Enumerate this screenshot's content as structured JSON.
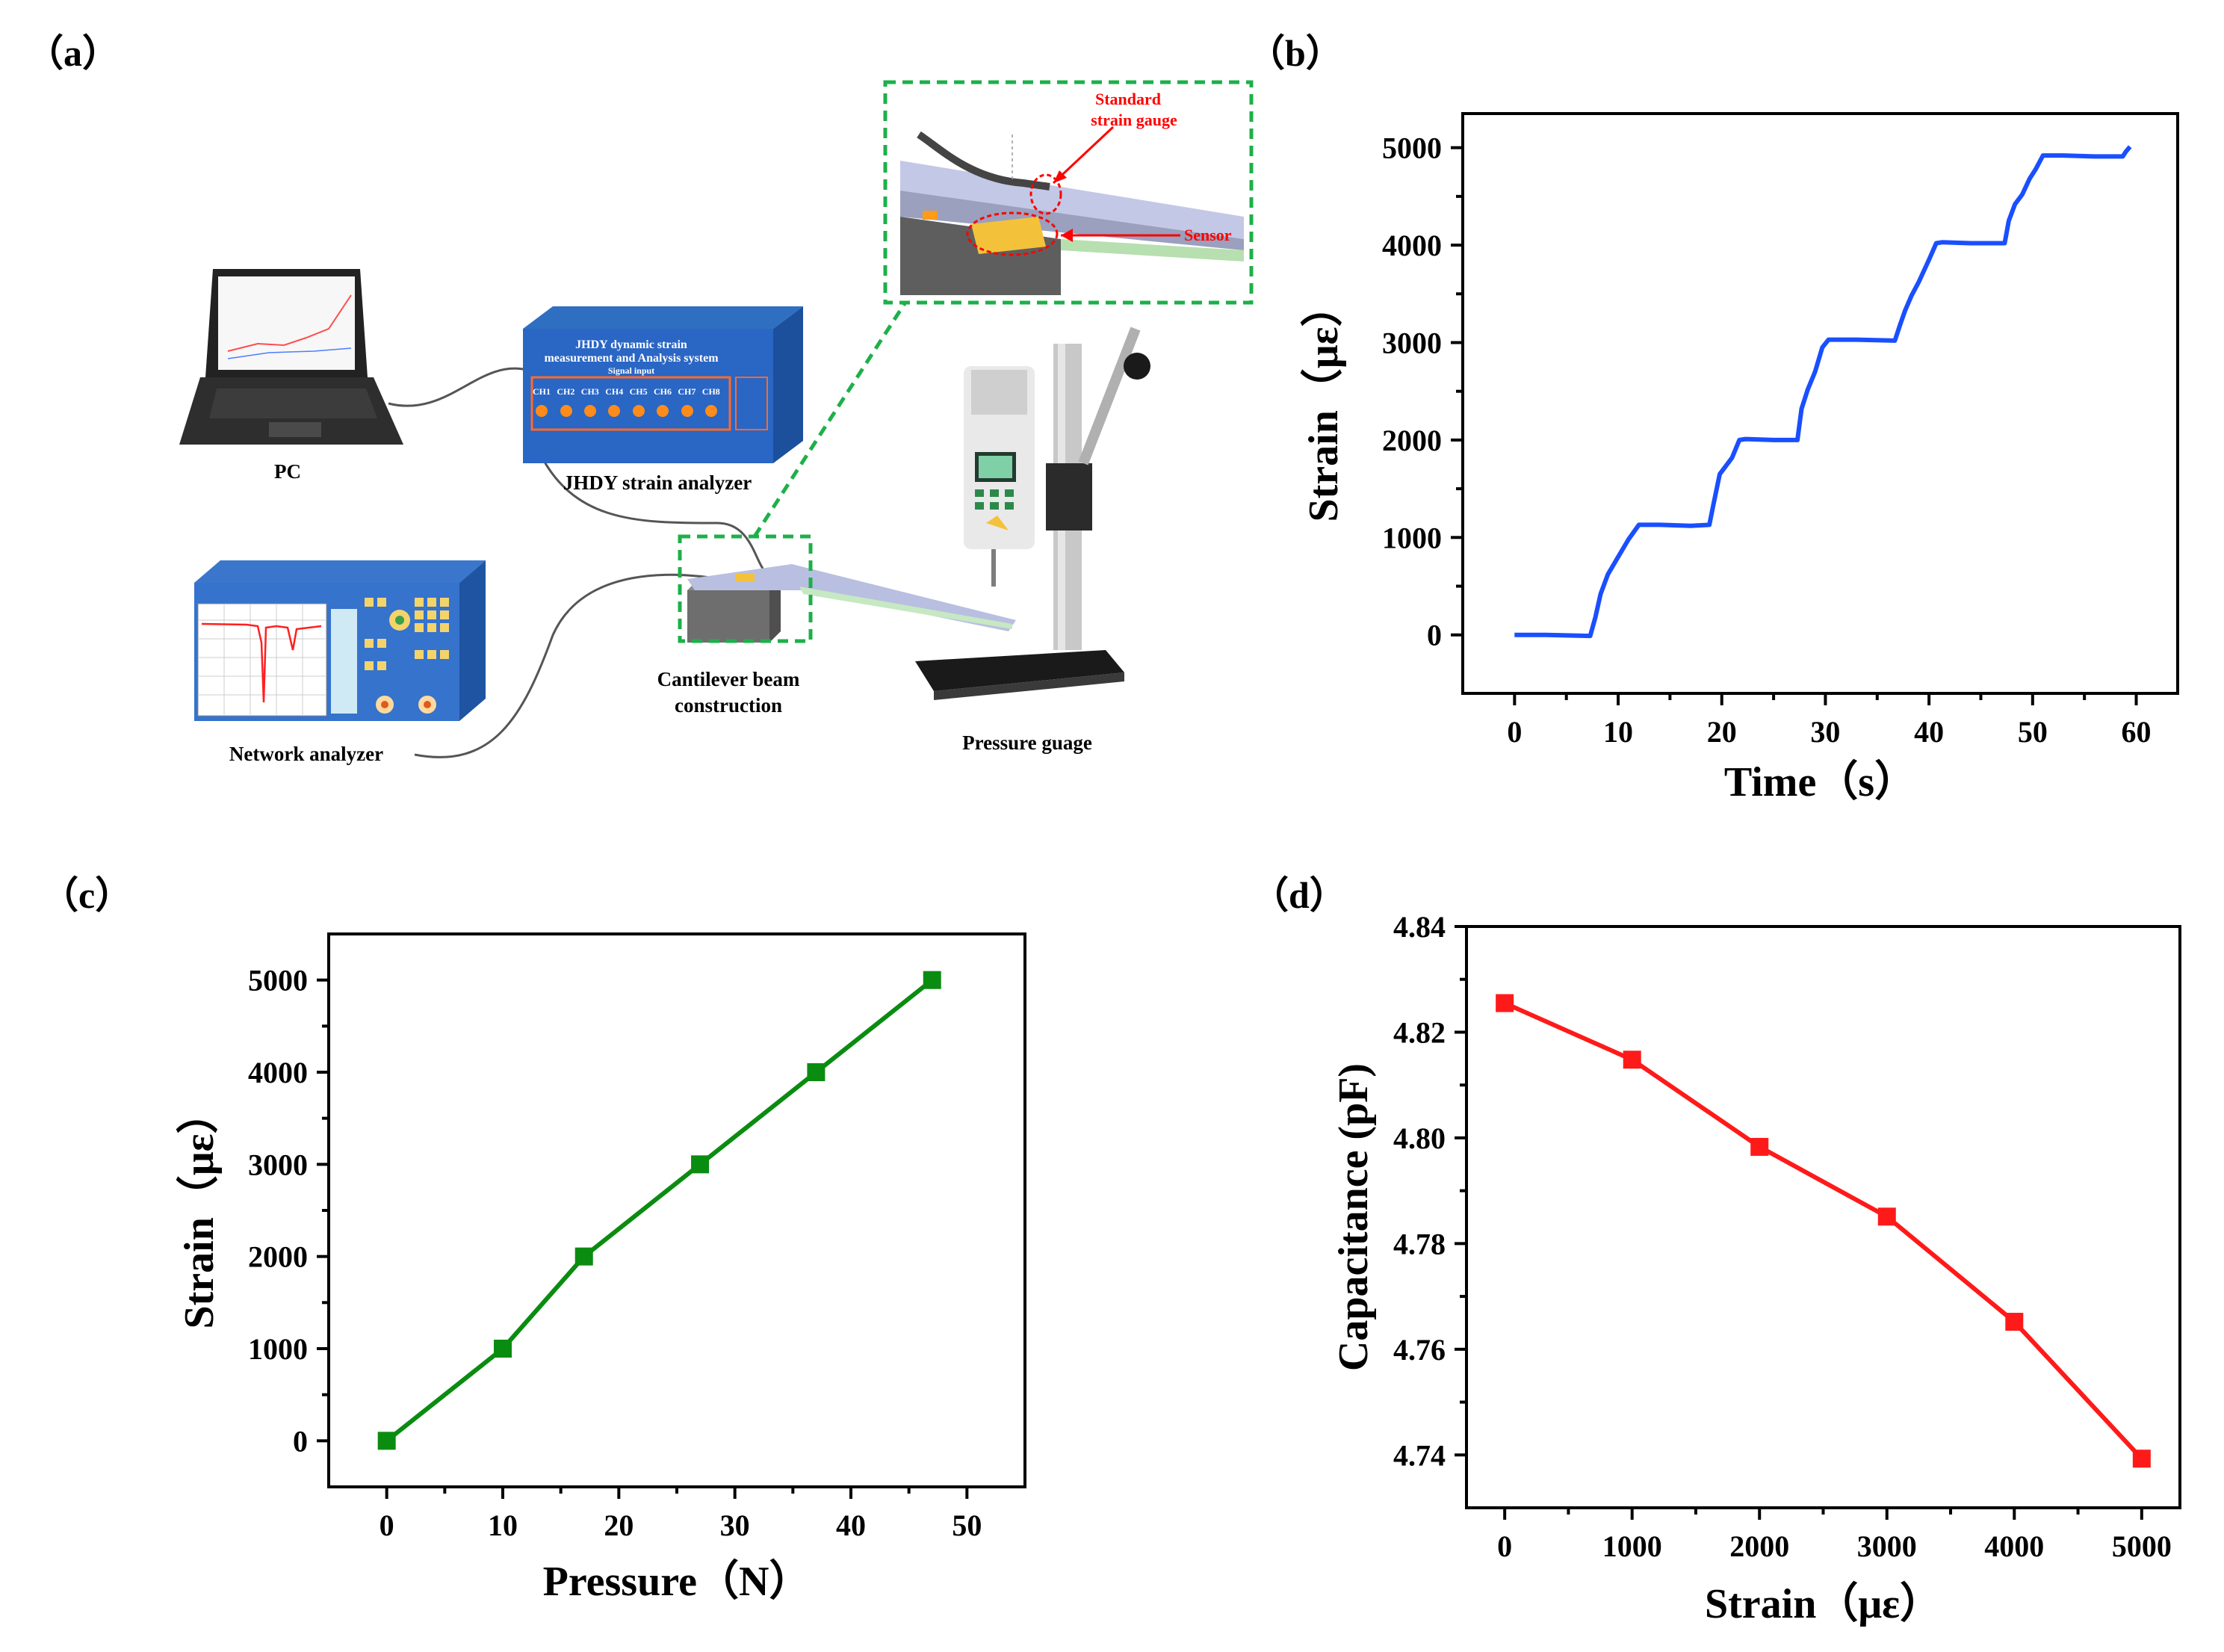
{
  "panels": {
    "a": "（a）",
    "b": "（b）",
    "c": "（c）",
    "d": "（d）"
  },
  "diagram": {
    "pc_label": "PC",
    "strain_analyzer_label": "JHDY strain analyzer",
    "strain_analyzer_title_1": "JHDY dynamic strain",
    "strain_analyzer_title_2": "measurement and Analysis system",
    "strain_analyzer_subtitle": "Signal input",
    "strain_analyzer_channels": [
      "CH1",
      "CH2",
      "CH3",
      "CH4",
      "CH5",
      "CH6",
      "CH7",
      "CH8"
    ],
    "network_analyzer_label": "Network analyzer",
    "cantilever_label_1": "Cantilever beam",
    "cantilever_label_2": "construction",
    "pressure_label": "Pressure guage",
    "standard_gauge_1": "Standard",
    "standard_gauge_2": "strain gauge",
    "sensor_label": "Sensor",
    "gauge_colors": {
      "beam": "#b9bfe0",
      "callout": "#1db04a",
      "red": "#ff0000"
    }
  },
  "chart_data": [
    {
      "id": "b",
      "type": "line",
      "color": "#1a4fff",
      "xlabel": "Time（s）",
      "ylabel": "Strain（με）",
      "xlim": [
        -5,
        64
      ],
      "ylim": [
        -600,
        5350
      ],
      "xticks": [
        0,
        10,
        20,
        30,
        40,
        50,
        60
      ],
      "yticks": [
        0,
        1000,
        2000,
        3000,
        4000,
        5000
      ],
      "series": [
        {
          "name": "Strain",
          "x": [
            0,
            3,
            7.3,
            7.8,
            8.3,
            9.0,
            10.0,
            11.0,
            12.0,
            14.0,
            17.0,
            18.8,
            19.2,
            19.8,
            20.3,
            21.0,
            21.7,
            22.3,
            25.0,
            27.3,
            27.7,
            28.3,
            29.0,
            29.7,
            30.3,
            33.0,
            36.7,
            37.2,
            37.7,
            38.3,
            39.0,
            40.0,
            40.7,
            41.3,
            44.0,
            47.3,
            47.7,
            48.3,
            49.0,
            49.7,
            50.3,
            51.0,
            53.0,
            56.0,
            58.7,
            59.0,
            59.4
          ],
          "y": [
            0,
            0,
            -10,
            180,
            420,
            620,
            800,
            980,
            1130,
            1130,
            1120,
            1130,
            1340,
            1650,
            1720,
            1820,
            2000,
            2010,
            2000,
            2000,
            2320,
            2520,
            2700,
            2950,
            3030,
            3030,
            3020,
            3180,
            3330,
            3480,
            3620,
            3850,
            4020,
            4030,
            4020,
            4020,
            4250,
            4420,
            4520,
            4680,
            4780,
            4920,
            4920,
            4910,
            4910,
            4960,
            5010
          ]
        }
      ]
    },
    {
      "id": "c",
      "type": "line",
      "color": "#0a8c10",
      "xlabel": "Pressure（N）",
      "ylabel": "Strain（με）",
      "xlim": [
        -5,
        55
      ],
      "ylim": [
        -500,
        5500
      ],
      "xticks": [
        0,
        10,
        20,
        30,
        40,
        50
      ],
      "yticks": [
        0,
        1000,
        2000,
        3000,
        4000,
        5000
      ],
      "series": [
        {
          "name": "Strain",
          "x": [
            0,
            10,
            17,
            27,
            37,
            47
          ],
          "y": [
            0,
            1000,
            2000,
            3000,
            4000,
            5000
          ]
        }
      ]
    },
    {
      "id": "d",
      "type": "line",
      "color": "#ff1a1a",
      "xlabel": "Strain（με）",
      "ylabel": "Capacitance (pF)",
      "xlim": [
        -300,
        5300
      ],
      "ylim": [
        4.73,
        4.84
      ],
      "xticks": [
        0,
        1000,
        2000,
        3000,
        4000,
        5000
      ],
      "yticks": [
        4.74,
        4.76,
        4.78,
        4.8,
        4.82,
        4.84
      ],
      "ytick_labels": [
        "4.74",
        "4.76",
        "4.78",
        "4.80",
        "4.82",
        "4.84"
      ],
      "series": [
        {
          "name": "Capacitance",
          "x": [
            0,
            1000,
            2000,
            3000,
            4000,
            5000
          ],
          "y": [
            4.8255,
            4.8148,
            4.7983,
            4.7851,
            4.7652,
            4.7393
          ]
        }
      ]
    }
  ]
}
